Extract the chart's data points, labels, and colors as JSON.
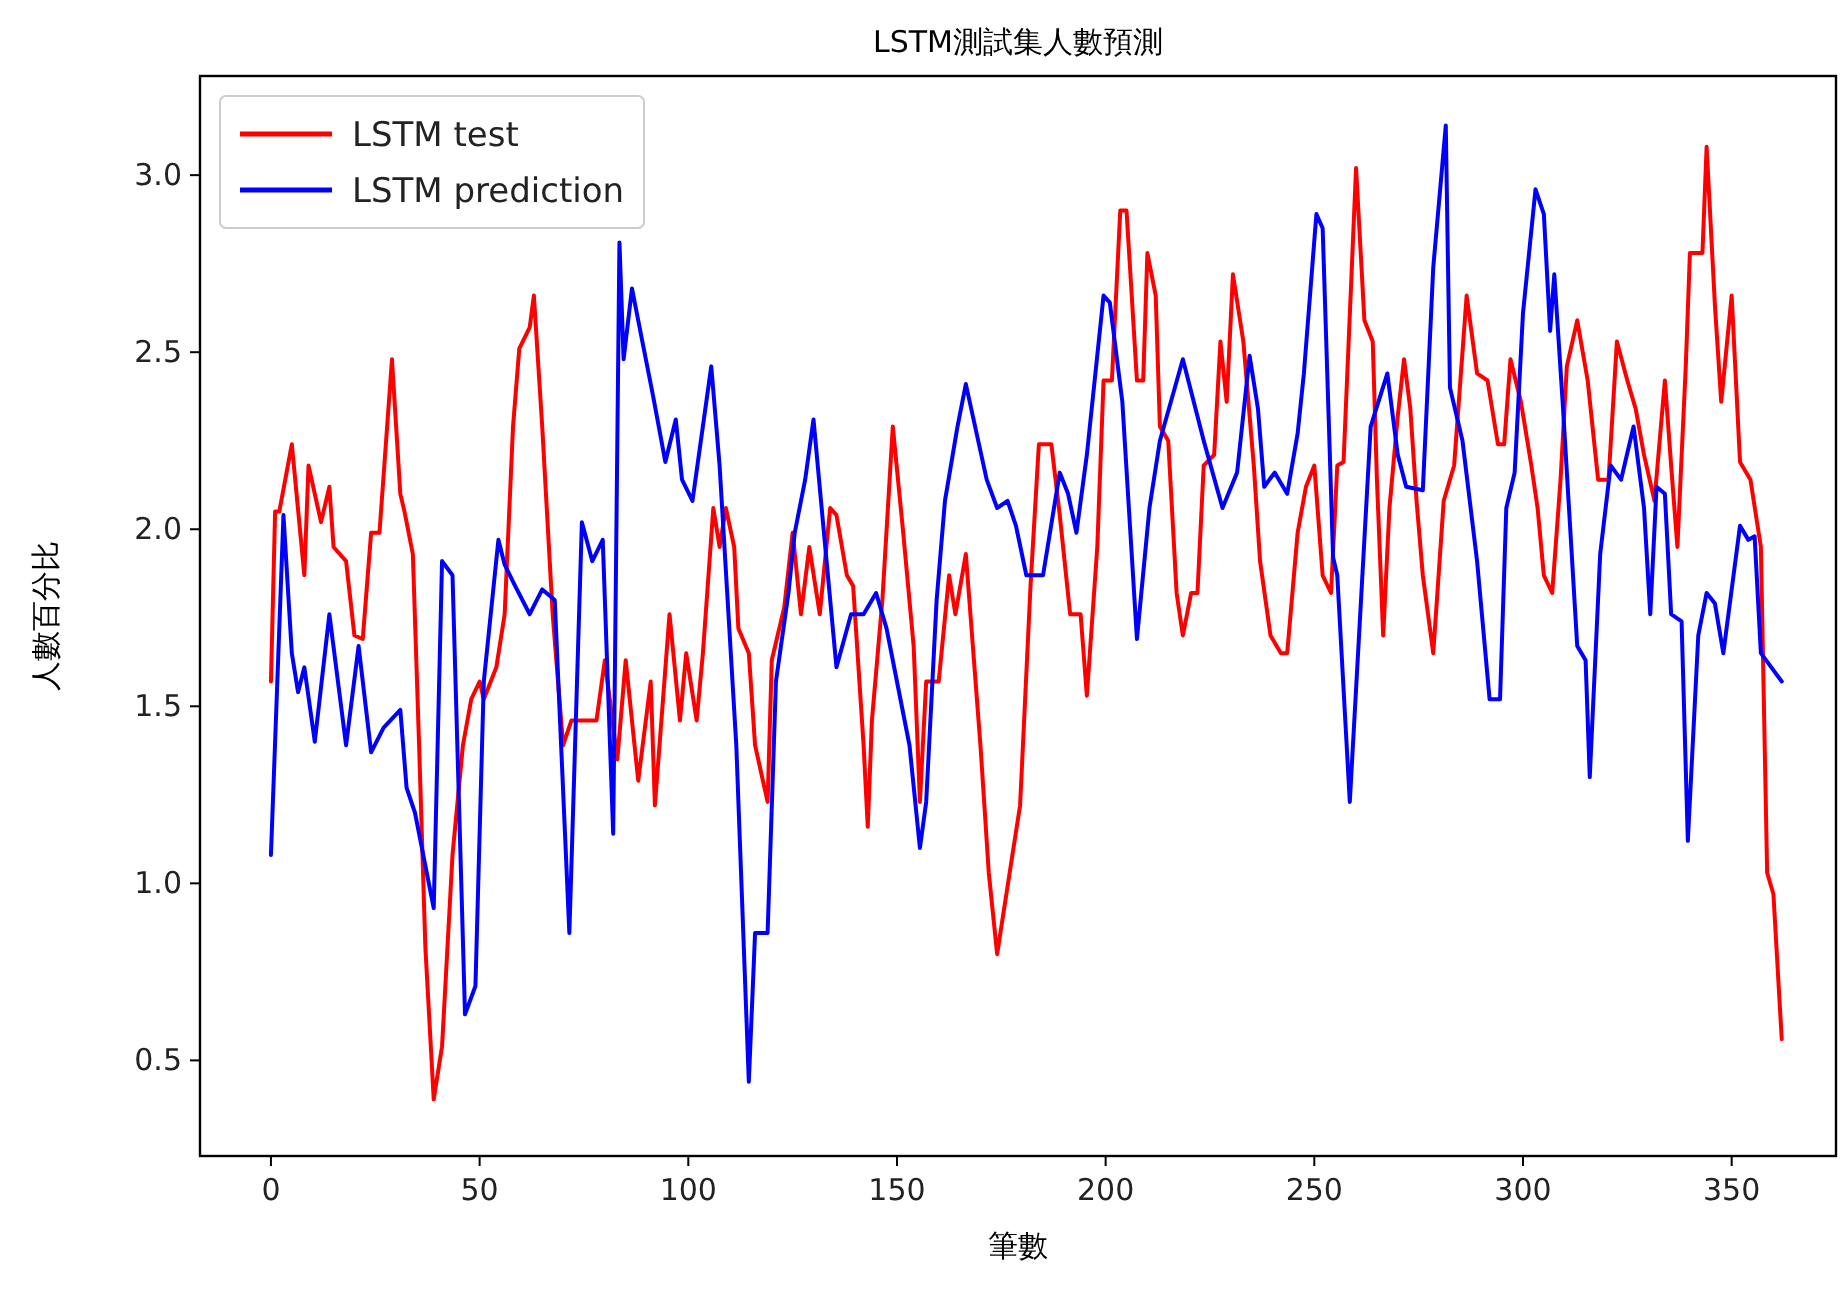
{
  "chart_data": {
    "type": "line",
    "title": "LSTM測試集人數預測",
    "xlabel": "筆數",
    "ylabel": "人數百分比",
    "xlim": [
      -17,
      375
    ],
    "ylim": [
      0.23,
      3.28
    ],
    "xticks": [
      0,
      50,
      100,
      150,
      200,
      250,
      300,
      350
    ],
    "yticks": [
      0.5,
      {
        "value": 1,
        "label": "1.0"
      },
      1.5,
      {
        "value": 2,
        "label": "2.0"
      },
      2.5,
      {
        "value": 3,
        "label": "3.0"
      }
    ],
    "legend": "top left",
    "grid": false,
    "series": [
      {
        "name": "LSTM test",
        "color": "#ff0000",
        "x": [
          0,
          1,
          2,
          5,
          8,
          9,
          12,
          14,
          15,
          18,
          20,
          22,
          24,
          26,
          29,
          31,
          32,
          34,
          35.5,
          37,
          39,
          41,
          43.5,
          46,
          48,
          50,
          51,
          54,
          56,
          58,
          59.5,
          62,
          63,
          65,
          67.5,
          70,
          72,
          74,
          78,
          80,
          83,
          85,
          88,
          91,
          92,
          95.5,
          98,
          99.5,
          102,
          103.5,
          106,
          107.5,
          109,
          111,
          112,
          114.5,
          116,
          119,
          120,
          123,
          125,
          127,
          129,
          131.5,
          134,
          135.5,
          138,
          139.5,
          142,
          143,
          144,
          146.5,
          149,
          151.5,
          154,
          155.5,
          157,
          160,
          162.5,
          164,
          166.5,
          170,
          172,
          174,
          177,
          179.5,
          182,
          184,
          187,
          189,
          191.5,
          194,
          195.5,
          198,
          199.5,
          201.5,
          203.5,
          205,
          207.5,
          209,
          210,
          212,
          213,
          215,
          217,
          218.5,
          220.5,
          222,
          223.5,
          226,
          227.5,
          229,
          230.5,
          233,
          235.5,
          237,
          239.5,
          242,
          243.5,
          246,
          248,
          250,
          252,
          254,
          255.5,
          257,
          260,
          262,
          264,
          265,
          266.5,
          268,
          270,
          271.5,
          273,
          274.5,
          276,
          278.5,
          281,
          283.5,
          286.5,
          289,
          291.5,
          294,
          295.5,
          297,
          299.5,
          302,
          303.5,
          305,
          307,
          309,
          310.5,
          313,
          315.5,
          318,
          320.5,
          322.5,
          325,
          327,
          329,
          331.5,
          334,
          335.5,
          337,
          339,
          340,
          343,
          344,
          346,
          347.5,
          350,
          352,
          354.5,
          357,
          358.5,
          360,
          362
        ],
        "values": [
          1.57,
          2.05,
          2.05,
          2.24,
          1.87,
          2.18,
          2.02,
          2.12,
          1.95,
          1.91,
          1.7,
          1.69,
          1.99,
          1.99,
          2.48,
          2.1,
          2.05,
          1.93,
          1.39,
          0.82,
          0.39,
          0.54,
          1.08,
          1.39,
          1.52,
          1.57,
          1.52,
          1.61,
          1.76,
          2.29,
          2.51,
          2.57,
          2.66,
          2.29,
          1.76,
          1.39,
          1.46,
          1.46,
          1.46,
          1.63,
          1.35,
          1.63,
          1.29,
          1.57,
          1.22,
          1.76,
          1.46,
          1.65,
          1.46,
          1.65,
          2.06,
          1.95,
          2.06,
          1.95,
          1.72,
          1.65,
          1.39,
          1.23,
          1.63,
          1.78,
          1.99,
          1.76,
          1.95,
          1.76,
          2.06,
          2.04,
          1.87,
          1.84,
          1.39,
          1.16,
          1.46,
          1.8,
          2.29,
          1.99,
          1.67,
          1.23,
          1.57,
          1.57,
          1.87,
          1.76,
          1.93,
          1.39,
          1.03,
          0.8,
          1.03,
          1.22,
          1.84,
          2.24,
          2.24,
          2.04,
          1.76,
          1.76,
          1.53,
          1.95,
          2.42,
          2.42,
          2.9,
          2.9,
          2.42,
          2.42,
          2.78,
          2.66,
          2.29,
          2.25,
          1.82,
          1.7,
          1.82,
          1.82,
          2.18,
          2.21,
          2.53,
          2.36,
          2.72,
          2.53,
          2.18,
          1.91,
          1.7,
          1.65,
          1.65,
          1.99,
          2.12,
          2.18,
          1.87,
          1.82,
          2.18,
          2.19,
          3.02,
          2.59,
          2.53,
          2.14,
          1.7,
          2.06,
          2.32,
          2.48,
          2.34,
          2.08,
          1.87,
          1.65,
          2.08,
          2.18,
          2.66,
          2.44,
          2.42,
          2.24,
          2.24,
          2.48,
          2.36,
          2.18,
          2.06,
          1.87,
          1.82,
          2.14,
          2.46,
          2.59,
          2.42,
          2.14,
          2.14,
          2.53,
          2.42,
          2.34,
          2.21,
          2.08,
          2.42,
          2.18,
          1.95,
          2.46,
          2.78,
          2.78,
          3.08,
          2.63,
          2.36,
          2.66,
          2.19,
          2.14,
          1.95,
          1.03,
          0.97,
          0.56
        ]
      },
      {
        "name": "LSTM prediction",
        "color": "#0000ff",
        "x": [
          0,
          3,
          5,
          6.5,
          8,
          10.5,
          14,
          18,
          21,
          24,
          27,
          31,
          32.5,
          34.5,
          39,
          41,
          43.5,
          46.5,
          49,
          51,
          54.5,
          56,
          58.5,
          62,
          65,
          68,
          71.5,
          74.5,
          77,
          79.5,
          82,
          83.5,
          84.5,
          86.5,
          89,
          91.5,
          94.5,
          97,
          98.5,
          101,
          105.5,
          107.5,
          111.5,
          114.5,
          116,
          119,
          121,
          124,
          125.5,
          128,
          130,
          132.5,
          135.5,
          139,
          142,
          145,
          147.5,
          150,
          153,
          155.5,
          157,
          159.5,
          161.5,
          164.5,
          166.5,
          171.5,
          174,
          176.5,
          178.5,
          181,
          185,
          189,
          191,
          193,
          195.5,
          199.5,
          201,
          204,
          207.5,
          210.5,
          213,
          218.5,
          223.5,
          228,
          231.5,
          234.5,
          236.5,
          238,
          240.5,
          243.5,
          246,
          247.5,
          250.5,
          252,
          254.5,
          255.5,
          258.5,
          263.5,
          267.5,
          270,
          272,
          276,
          278.5,
          281.5,
          282.5,
          285.5,
          289,
          292,
          294.5,
          296,
          298,
          300,
          303,
          305,
          306.5,
          307.5,
          309.5,
          313,
          315,
          316,
          318.5,
          321,
          323.5,
          326.5,
          329,
          330.5,
          332,
          334,
          335.5,
          338,
          339.5,
          342,
          344,
          346,
          348,
          352,
          354,
          355.5,
          357,
          362
        ],
        "values": [
          1.08,
          2.04,
          1.65,
          1.54,
          1.61,
          1.4,
          1.76,
          1.39,
          1.67,
          1.37,
          1.44,
          1.49,
          1.27,
          1.2,
          0.93,
          1.91,
          1.87,
          0.63,
          0.71,
          1.57,
          1.97,
          1.9,
          1.84,
          1.76,
          1.83,
          1.8,
          0.86,
          2.02,
          1.91,
          1.97,
          1.14,
          2.81,
          2.48,
          2.68,
          2.53,
          2.38,
          2.19,
          2.31,
          2.14,
          2.08,
          2.46,
          2.18,
          1.39,
          0.44,
          0.86,
          0.86,
          1.57,
          1.82,
          1.99,
          2.14,
          2.31,
          1.99,
          1.61,
          1.76,
          1.76,
          1.82,
          1.72,
          1.57,
          1.39,
          1.1,
          1.23,
          1.8,
          2.08,
          2.29,
          2.41,
          2.14,
          2.06,
          2.08,
          2.01,
          1.87,
          1.87,
          2.16,
          2.1,
          1.99,
          2.21,
          2.66,
          2.64,
          2.36,
          1.69,
          2.06,
          2.25,
          2.48,
          2.25,
          2.06,
          2.16,
          2.49,
          2.34,
          2.12,
          2.16,
          2.1,
          2.27,
          2.44,
          2.89,
          2.85,
          1.92,
          1.87,
          1.23,
          2.29,
          2.44,
          2.21,
          2.12,
          2.11,
          2.74,
          3.14,
          2.4,
          2.25,
          1.91,
          1.52,
          1.52,
          2.06,
          2.16,
          2.61,
          2.96,
          2.89,
          2.56,
          2.72,
          2.36,
          1.67,
          1.63,
          1.3,
          1.93,
          2.18,
          2.14,
          2.29,
          2.06,
          1.76,
          2.12,
          2.1,
          1.76,
          1.74,
          1.12,
          1.7,
          1.82,
          1.79,
          1.65,
          2.01,
          1.97,
          1.98,
          1.65,
          1.57
        ]
      }
    ]
  }
}
